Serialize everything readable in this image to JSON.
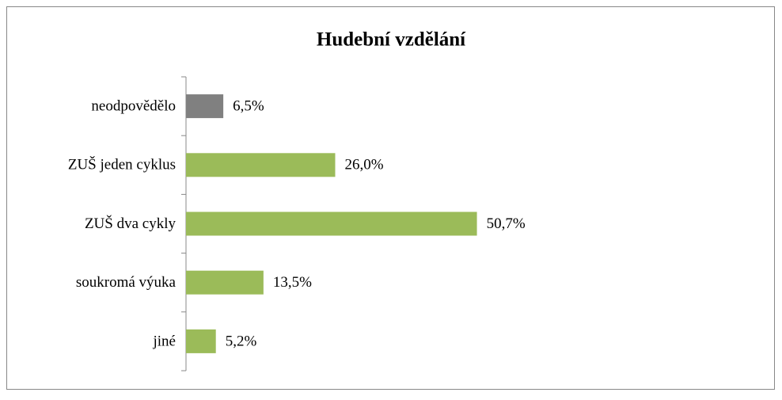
{
  "chart_data": {
    "type": "bar",
    "orientation": "horizontal",
    "title": "Hudební vzdělání",
    "categories": [
      "neodpovědělo",
      "ZUŠ jeden cyklus",
      "ZUŠ dva cykly",
      "soukromá výuka",
      "jiné"
    ],
    "values": [
      6.5,
      26.0,
      50.7,
      13.5,
      5.2
    ],
    "value_labels": [
      "6,5%",
      "26,0%",
      "50,7%",
      "13,5%",
      "5,2%"
    ],
    "colors": [
      "#808080",
      "#9bbb59",
      "#9bbb59",
      "#9bbb59",
      "#9bbb59"
    ]
  }
}
